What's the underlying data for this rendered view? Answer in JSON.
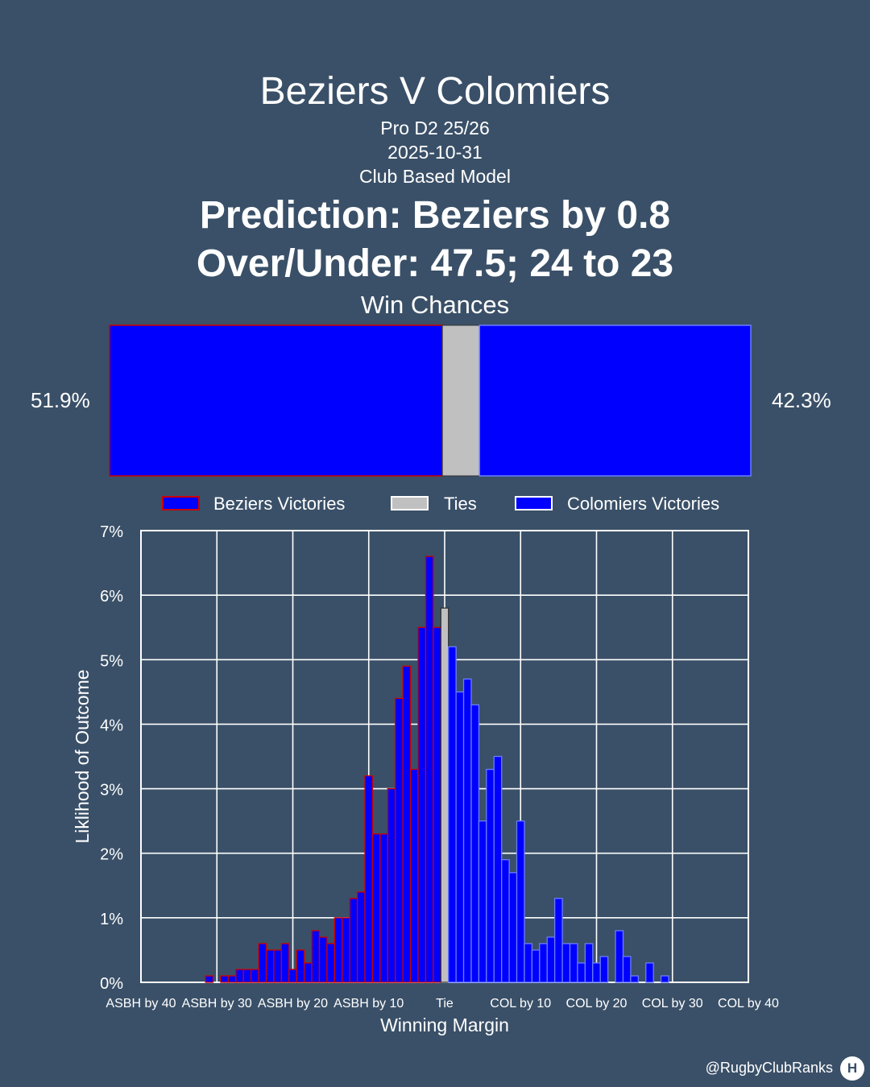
{
  "header": {
    "title": "Beziers V Colomiers",
    "competition": "Pro D2 25/26",
    "date": "2025-10-31",
    "model": "Club Based Model",
    "prediction": "Prediction: Beziers by 0.8",
    "over_under": "Over/Under: 47.5; 24 to 23"
  },
  "win_chances": {
    "title": "Win Chances",
    "home_pct_label": "51.9%",
    "away_pct_label": "42.3%",
    "home": 51.9,
    "tie": 5.8,
    "away": 42.3
  },
  "colors": {
    "background": "#3a5068",
    "fill": "#0000ff",
    "home_edge": "#cc0000",
    "tie_fill": "#c0c0c0",
    "away_edge": "#6a7dff"
  },
  "credit": "@RugbyClubRanks",
  "logo_glyph": "H",
  "chart_data": {
    "type": "bar",
    "xlabel": "Winning Margin",
    "ylabel": "Liklihood of Outcome",
    "ylim": [
      0,
      7
    ],
    "y_ticks": [
      "0%",
      "1%",
      "2%",
      "3%",
      "4%",
      "5%",
      "6%",
      "7%"
    ],
    "x_range": [
      -40,
      40
    ],
    "x_ticks": [
      {
        "value": -40,
        "label": "ASBH by 40"
      },
      {
        "value": -30,
        "label": "ASBH by 30"
      },
      {
        "value": -20,
        "label": "ASBH by 20"
      },
      {
        "value": -10,
        "label": "ASBH by 10"
      },
      {
        "value": 0,
        "label": "Tie"
      },
      {
        "value": 10,
        "label": "COL by 10"
      },
      {
        "value": 20,
        "label": "COL by 20"
      },
      {
        "value": 30,
        "label": "COL by 30"
      },
      {
        "value": 40,
        "label": "COL by 40"
      }
    ],
    "grid": true,
    "legend_position": "top",
    "series": [
      {
        "name": "Beziers Victories",
        "x": [
          -31,
          -30,
          -29,
          -28,
          -27,
          -26,
          -25,
          -24,
          -23,
          -22,
          -21,
          -20,
          -19,
          -18,
          -17,
          -16,
          -15,
          -14,
          -13,
          -12,
          -11,
          -10,
          -9,
          -8,
          -7,
          -6,
          -5,
          -4,
          -3,
          -2,
          -1
        ],
        "values": [
          0.1,
          0.0,
          0.1,
          0.1,
          0.2,
          0.2,
          0.2,
          0.6,
          0.5,
          0.5,
          0.6,
          0.2,
          0.5,
          0.3,
          0.8,
          0.7,
          0.6,
          1.0,
          1.0,
          1.3,
          1.4,
          3.2,
          2.3,
          2.3,
          3.0,
          4.4,
          4.9,
          3.3,
          5.5,
          6.6,
          5.5
        ]
      },
      {
        "name": "Ties",
        "x": [
          0
        ],
        "values": [
          5.8
        ]
      },
      {
        "name": "Colomiers Victories",
        "x": [
          1,
          2,
          3,
          4,
          5,
          6,
          7,
          8,
          9,
          10,
          11,
          12,
          13,
          14,
          15,
          16,
          17,
          18,
          19,
          20,
          21,
          22,
          23,
          24,
          25,
          26,
          27,
          28,
          29
        ],
        "values": [
          5.2,
          4.5,
          4.7,
          4.3,
          2.5,
          3.3,
          3.5,
          1.9,
          1.7,
          2.5,
          0.6,
          0.5,
          0.6,
          0.7,
          1.3,
          0.6,
          0.6,
          0.3,
          0.6,
          0.3,
          0.4,
          0.0,
          0.8,
          0.4,
          0.1,
          0.0,
          0.3,
          0.0,
          0.1
        ]
      }
    ]
  }
}
